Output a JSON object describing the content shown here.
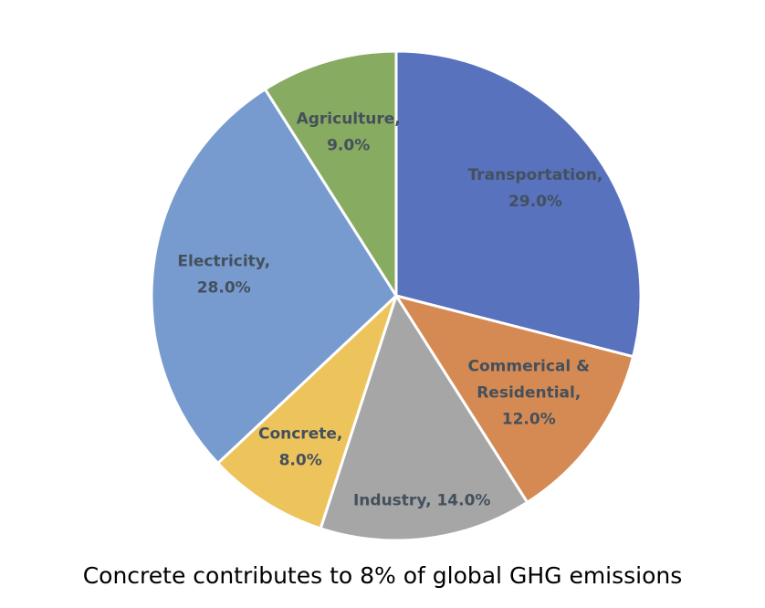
{
  "chart_data": {
    "type": "pie",
    "title": "",
    "slices": [
      {
        "label_lines": [
          "Transportation,",
          "29.0%"
        ],
        "category": "Transportation",
        "value": 29.0,
        "color": "#5872be"
      },
      {
        "label_lines": [
          "Commerical &",
          "Residential,",
          "12.0%"
        ],
        "category": "Commerical & Residential",
        "value": 12.0,
        "color": "#d58a53"
      },
      {
        "label_lines": [
          "Industry, 14.0%"
        ],
        "category": "Industry",
        "value": 14.0,
        "color": "#a6a6a6"
      },
      {
        "label_lines": [
          "Concrete,",
          "8.0%"
        ],
        "category": "Concrete",
        "value": 8.0,
        "color": "#edc35c"
      },
      {
        "label_lines": [
          "Electricity,",
          "28.0%"
        ],
        "category": "Electricity",
        "value": 28.0,
        "color": "#779bcf"
      },
      {
        "label_lines": [
          "Agriculture,",
          "9.0%"
        ],
        "category": "Agriculture",
        "value": 9.0,
        "color": "#88ab62"
      }
    ],
    "start": "top (12 o'clock)",
    "direction": "clockwise",
    "legend": "none",
    "edge_color": "#ffffff"
  },
  "caption": "Concrete contributes to 8% of global GHG emissions"
}
